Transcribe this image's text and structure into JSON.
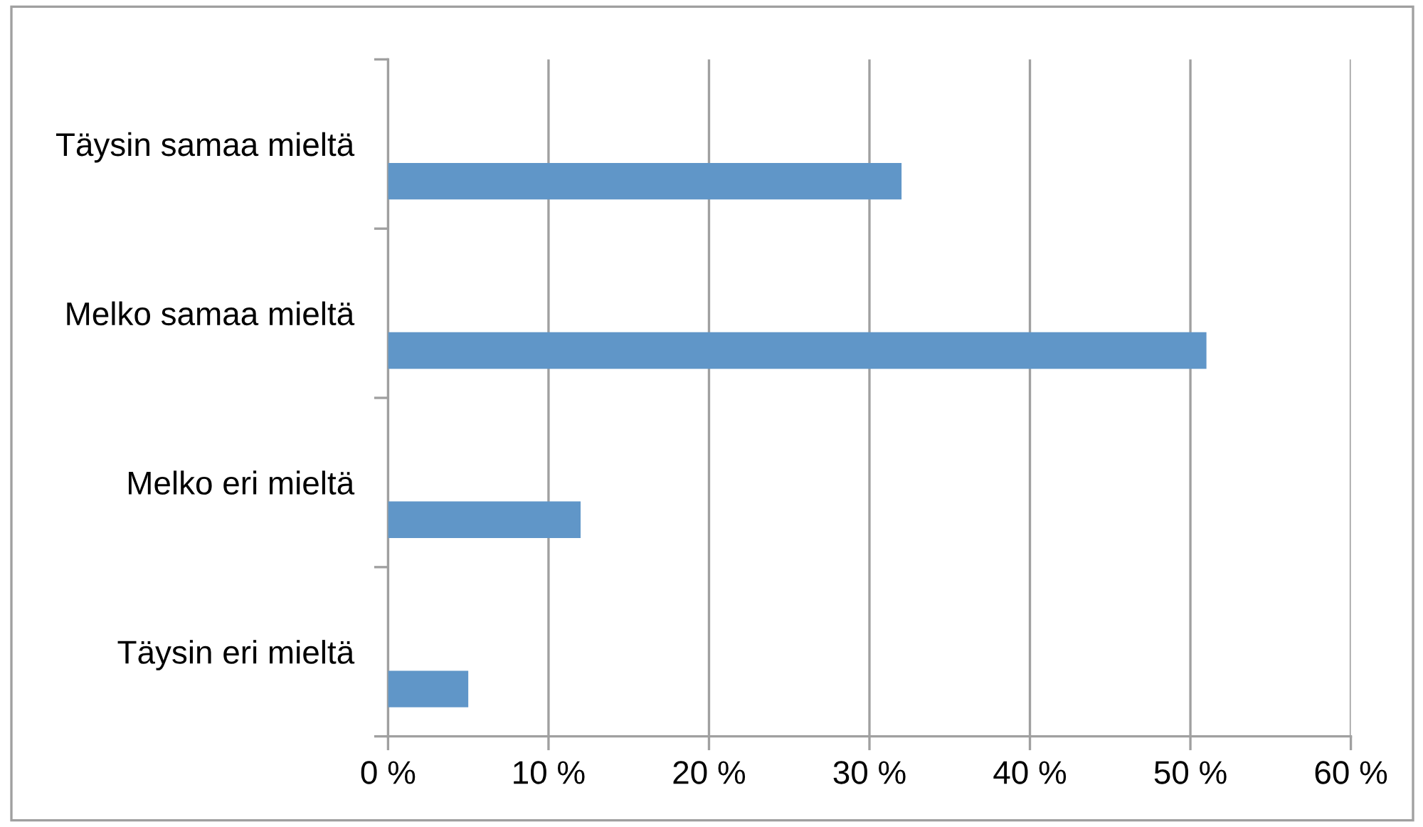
{
  "chart_data": {
    "type": "bar",
    "orientation": "horizontal",
    "categories": [
      "Täysin samaa mieltä",
      "Melko samaa mieltä",
      "Melko eri mieltä",
      "Täysin eri mieltä"
    ],
    "values": [
      32,
      51,
      12,
      5
    ],
    "color": "#6096c8",
    "xlim": [
      0,
      60
    ],
    "xticks": [
      {
        "value": 0,
        "label": "0 %"
      },
      {
        "value": 10,
        "label": "10 %"
      },
      {
        "value": 20,
        "label": "20 %"
      },
      {
        "value": 30,
        "label": "30 %"
      },
      {
        "value": 40,
        "label": "40 %"
      },
      {
        "value": 50,
        "label": "50 %"
      },
      {
        "value": 60,
        "label": "60 %"
      }
    ],
    "grid": "x"
  }
}
